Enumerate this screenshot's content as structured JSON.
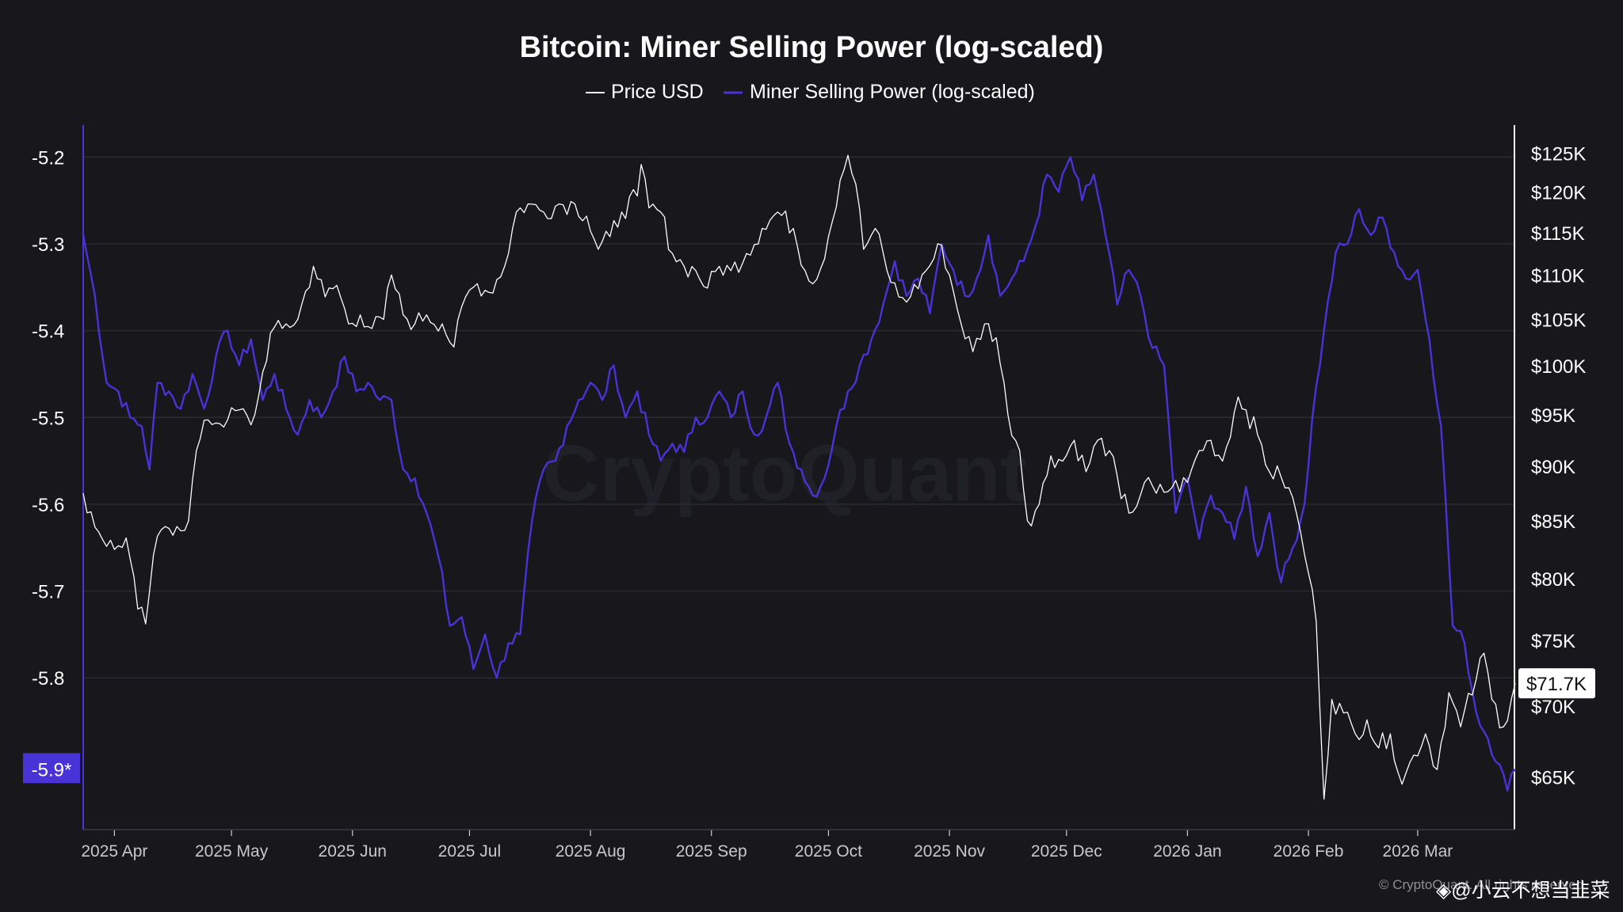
{
  "chart_data": {
    "type": "line",
    "title": "Bitcoin: Miner Selling Power (log-scaled)",
    "legend_position": "top-center",
    "grid": true,
    "x_ticks": [
      "2025 Apr",
      "2025 May",
      "2025 Jun",
      "2025 Jul",
      "2025 Aug",
      "2025 Sep",
      "2025 Oct",
      "2025 Nov",
      "2025 Dec",
      "2026 Jan",
      "2026 Feb",
      "2026 Mar"
    ],
    "x_range": [
      "2025-03-24",
      "2026-03-26"
    ],
    "y_left": {
      "ticks": [
        "-5.2",
        "-5.3",
        "-5.4",
        "-5.5",
        "-5.6",
        "-5.7",
        "-5.8"
      ],
      "range": [
        -5.975,
        -5.165
      ],
      "current_label": "-5.9*",
      "current_color": "#4733d6"
    },
    "y_right": {
      "scale": "log",
      "ticks": [
        "$125K",
        "$120K",
        "$115K",
        "$110K",
        "$105K",
        "$100K",
        "$95K",
        "$90K",
        "$85K",
        "$80K",
        "$75K",
        "$70K",
        "$65K"
      ],
      "tick_values": [
        125000,
        120000,
        115000,
        110000,
        105000,
        100000,
        95000,
        90000,
        85000,
        80000,
        75000,
        70000,
        65000
      ],
      "range": [
        61500,
        128500
      ],
      "current_label": "$71.7K"
    },
    "series": [
      {
        "name": "Price USD",
        "axis": "right",
        "color": "#ffffff",
        "points": [
          [
            "2025-03-24",
            87500
          ],
          [
            "2025-03-28",
            84000
          ],
          [
            "2025-04-01",
            82500
          ],
          [
            "2025-04-04",
            83500
          ],
          [
            "2025-04-07",
            77500
          ],
          [
            "2025-04-09",
            76300
          ],
          [
            "2025-04-11",
            82000
          ],
          [
            "2025-04-14",
            84500
          ],
          [
            "2025-04-17",
            84500
          ],
          [
            "2025-04-20",
            85000
          ],
          [
            "2025-04-22",
            91500
          ],
          [
            "2025-04-25",
            94500
          ],
          [
            "2025-04-30",
            94500
          ],
          [
            "2025-05-03",
            95500
          ],
          [
            "2025-05-06",
            94000
          ],
          [
            "2025-05-08",
            97000
          ],
          [
            "2025-05-11",
            103500
          ],
          [
            "2025-05-14",
            104000
          ],
          [
            "2025-05-18",
            105000
          ],
          [
            "2025-05-22",
            111000
          ],
          [
            "2025-05-25",
            107500
          ],
          [
            "2025-05-28",
            108800
          ],
          [
            "2025-05-31",
            104500
          ],
          [
            "2025-06-03",
            105500
          ],
          [
            "2025-06-06",
            104000
          ],
          [
            "2025-06-09",
            105000
          ],
          [
            "2025-06-11",
            110000
          ],
          [
            "2025-06-14",
            105500
          ],
          [
            "2025-06-17",
            104500
          ],
          [
            "2025-06-20",
            105500
          ],
          [
            "2025-06-24",
            104500
          ],
          [
            "2025-06-27",
            102000
          ],
          [
            "2025-06-30",
            107500
          ],
          [
            "2025-07-03",
            109000
          ],
          [
            "2025-07-06",
            108000
          ],
          [
            "2025-07-10",
            111000
          ],
          [
            "2025-07-13",
            117500
          ],
          [
            "2025-07-16",
            118500
          ],
          [
            "2025-07-20",
            117500
          ],
          [
            "2025-07-24",
            118500
          ],
          [
            "2025-07-28",
            118500
          ],
          [
            "2025-07-31",
            117000
          ],
          [
            "2025-08-03",
            113000
          ],
          [
            "2025-08-06",
            114500
          ],
          [
            "2025-08-09",
            117500
          ],
          [
            "2025-08-13",
            119500
          ],
          [
            "2025-08-14",
            123500
          ],
          [
            "2025-08-16",
            118000
          ],
          [
            "2025-08-19",
            117500
          ],
          [
            "2025-08-22",
            112500
          ],
          [
            "2025-08-25",
            111000
          ],
          [
            "2025-08-28",
            110500
          ],
          [
            "2025-08-31",
            108500
          ],
          [
            "2025-09-03",
            111000
          ],
          [
            "2025-09-06",
            110500
          ],
          [
            "2025-09-10",
            112500
          ],
          [
            "2025-09-14",
            115500
          ],
          [
            "2025-09-18",
            117500
          ],
          [
            "2025-09-22",
            115500
          ],
          [
            "2025-09-25",
            110500
          ],
          [
            "2025-09-28",
            109500
          ],
          [
            "2025-10-01",
            114500
          ],
          [
            "2025-10-04",
            121500
          ],
          [
            "2025-10-06",
            124700
          ],
          [
            "2025-10-08",
            121000
          ],
          [
            "2025-10-10",
            113000
          ],
          [
            "2025-10-13",
            115500
          ],
          [
            "2025-10-16",
            110500
          ],
          [
            "2025-10-19",
            107500
          ],
          [
            "2025-10-22",
            107500
          ],
          [
            "2025-10-26",
            110500
          ],
          [
            "2025-10-30",
            113500
          ],
          [
            "2025-11-01",
            110000
          ],
          [
            "2025-11-04",
            104500
          ],
          [
            "2025-11-07",
            101500
          ],
          [
            "2025-11-10",
            104500
          ],
          [
            "2025-11-13",
            103000
          ],
          [
            "2025-11-16",
            95000
          ],
          [
            "2025-11-19",
            91500
          ],
          [
            "2025-11-21",
            85000
          ],
          [
            "2025-11-24",
            86500
          ],
          [
            "2025-11-27",
            91000
          ],
          [
            "2025-11-30",
            90500
          ],
          [
            "2025-12-03",
            92500
          ],
          [
            "2025-12-06",
            89500
          ],
          [
            "2025-12-09",
            92500
          ],
          [
            "2025-12-12",
            91500
          ],
          [
            "2025-12-15",
            87000
          ],
          [
            "2025-12-18",
            85800
          ],
          [
            "2025-12-21",
            88500
          ],
          [
            "2025-12-24",
            87500
          ],
          [
            "2025-12-28",
            88000
          ],
          [
            "2026-01-01",
            88500
          ],
          [
            "2026-01-04",
            91500
          ],
          [
            "2026-01-07",
            92500
          ],
          [
            "2026-01-10",
            90500
          ],
          [
            "2026-01-14",
            96800
          ],
          [
            "2026-01-16",
            95500
          ],
          [
            "2026-01-19",
            93000
          ],
          [
            "2026-01-22",
            89500
          ],
          [
            "2026-01-25",
            89000
          ],
          [
            "2026-01-27",
            88000
          ],
          [
            "2026-01-30",
            84000
          ],
          [
            "2026-02-01",
            80500
          ],
          [
            "2026-02-03",
            76500
          ],
          [
            "2026-02-05",
            63500
          ],
          [
            "2026-02-07",
            70500
          ],
          [
            "2026-02-10",
            69500
          ],
          [
            "2026-02-13",
            68000
          ],
          [
            "2026-02-16",
            69000
          ],
          [
            "2026-02-19",
            67000
          ],
          [
            "2026-02-22",
            68000
          ],
          [
            "2026-02-25",
            64500
          ],
          [
            "2026-02-28",
            66500
          ],
          [
            "2026-03-03",
            68000
          ],
          [
            "2026-03-06",
            65500
          ],
          [
            "2026-03-09",
            71000
          ],
          [
            "2026-03-12",
            68500
          ],
          [
            "2026-03-16",
            72000
          ],
          [
            "2026-03-18",
            74000
          ],
          [
            "2026-03-20",
            70500
          ],
          [
            "2026-03-23",
            68500
          ],
          [
            "2026-03-25",
            70500
          ],
          [
            "2026-03-26",
            71700
          ]
        ]
      },
      {
        "name": "Miner Selling Power (log-scaled)",
        "axis": "left",
        "color": "#4733d6",
        "points": [
          [
            "2025-03-24",
            -5.29
          ],
          [
            "2025-03-27",
            -5.36
          ],
          [
            "2025-03-30",
            -5.46
          ],
          [
            "2025-04-02",
            -5.47
          ],
          [
            "2025-04-05",
            -5.5
          ],
          [
            "2025-04-08",
            -5.51
          ],
          [
            "2025-04-10",
            -5.56
          ],
          [
            "2025-04-12",
            -5.46
          ],
          [
            "2025-04-15",
            -5.47
          ],
          [
            "2025-04-18",
            -5.49
          ],
          [
            "2025-04-21",
            -5.45
          ],
          [
            "2025-04-24",
            -5.49
          ],
          [
            "2025-04-27",
            -5.43
          ],
          [
            "2025-04-30",
            -5.4
          ],
          [
            "2025-05-03",
            -5.44
          ],
          [
            "2025-05-06",
            -5.41
          ],
          [
            "2025-05-09",
            -5.48
          ],
          [
            "2025-05-12",
            -5.45
          ],
          [
            "2025-05-15",
            -5.49
          ],
          [
            "2025-05-18",
            -5.52
          ],
          [
            "2025-05-21",
            -5.48
          ],
          [
            "2025-05-24",
            -5.5
          ],
          [
            "2025-05-27",
            -5.47
          ],
          [
            "2025-05-30",
            -5.43
          ],
          [
            "2025-06-02",
            -5.47
          ],
          [
            "2025-06-05",
            -5.46
          ],
          [
            "2025-06-08",
            -5.48
          ],
          [
            "2025-06-11",
            -5.48
          ],
          [
            "2025-06-14",
            -5.56
          ],
          [
            "2025-06-17",
            -5.57
          ],
          [
            "2025-06-20",
            -5.61
          ],
          [
            "2025-06-23",
            -5.66
          ],
          [
            "2025-06-26",
            -5.74
          ],
          [
            "2025-06-29",
            -5.73
          ],
          [
            "2025-07-02",
            -5.79
          ],
          [
            "2025-07-05",
            -5.75
          ],
          [
            "2025-07-08",
            -5.8
          ],
          [
            "2025-07-11",
            -5.76
          ],
          [
            "2025-07-14",
            -5.75
          ],
          [
            "2025-07-17",
            -5.62
          ],
          [
            "2025-07-20",
            -5.56
          ],
          [
            "2025-07-23",
            -5.55
          ],
          [
            "2025-07-26",
            -5.51
          ],
          [
            "2025-07-29",
            -5.48
          ],
          [
            "2025-08-01",
            -5.46
          ],
          [
            "2025-08-04",
            -5.48
          ],
          [
            "2025-08-07",
            -5.44
          ],
          [
            "2025-08-10",
            -5.5
          ],
          [
            "2025-08-13",
            -5.47
          ],
          [
            "2025-08-16",
            -5.52
          ],
          [
            "2025-08-19",
            -5.55
          ],
          [
            "2025-08-22",
            -5.53
          ],
          [
            "2025-08-25",
            -5.54
          ],
          [
            "2025-08-28",
            -5.5
          ],
          [
            "2025-08-31",
            -5.5
          ],
          [
            "2025-09-03",
            -5.47
          ],
          [
            "2025-09-06",
            -5.5
          ],
          [
            "2025-09-09",
            -5.47
          ],
          [
            "2025-09-12",
            -5.52
          ],
          [
            "2025-09-15",
            -5.5
          ],
          [
            "2025-09-18",
            -5.46
          ],
          [
            "2025-09-21",
            -5.53
          ],
          [
            "2025-09-24",
            -5.56
          ],
          [
            "2025-09-27",
            -5.59
          ],
          [
            "2025-09-30",
            -5.57
          ],
          [
            "2025-10-03",
            -5.51
          ],
          [
            "2025-10-06",
            -5.47
          ],
          [
            "2025-10-09",
            -5.44
          ],
          [
            "2025-10-12",
            -5.41
          ],
          [
            "2025-10-15",
            -5.37
          ],
          [
            "2025-10-18",
            -5.32
          ],
          [
            "2025-10-21",
            -5.36
          ],
          [
            "2025-10-24",
            -5.34
          ],
          [
            "2025-10-27",
            -5.38
          ],
          [
            "2025-10-30",
            -5.3
          ],
          [
            "2025-11-02",
            -5.33
          ],
          [
            "2025-11-05",
            -5.36
          ],
          [
            "2025-11-08",
            -5.34
          ],
          [
            "2025-11-11",
            -5.29
          ],
          [
            "2025-11-14",
            -5.36
          ],
          [
            "2025-11-17",
            -5.34
          ],
          [
            "2025-11-20",
            -5.32
          ],
          [
            "2025-11-23",
            -5.28
          ],
          [
            "2025-11-26",
            -5.22
          ],
          [
            "2025-11-29",
            -5.24
          ],
          [
            "2025-12-02",
            -5.2
          ],
          [
            "2025-12-05",
            -5.25
          ],
          [
            "2025-12-08",
            -5.22
          ],
          [
            "2025-12-11",
            -5.29
          ],
          [
            "2025-12-14",
            -5.37
          ],
          [
            "2025-12-17",
            -5.33
          ],
          [
            "2025-12-20",
            -5.36
          ],
          [
            "2025-12-23",
            -5.42
          ],
          [
            "2025-12-26",
            -5.44
          ],
          [
            "2025-12-29",
            -5.61
          ],
          [
            "2026-01-01",
            -5.57
          ],
          [
            "2026-01-04",
            -5.64
          ],
          [
            "2026-01-07",
            -5.59
          ],
          [
            "2026-01-10",
            -5.61
          ],
          [
            "2026-01-13",
            -5.64
          ],
          [
            "2026-01-16",
            -5.58
          ],
          [
            "2026-01-19",
            -5.66
          ],
          [
            "2026-01-22",
            -5.61
          ],
          [
            "2026-01-25",
            -5.69
          ],
          [
            "2026-01-28",
            -5.65
          ],
          [
            "2026-01-31",
            -5.6
          ],
          [
            "2026-02-02",
            -5.5
          ],
          [
            "2026-02-05",
            -5.4
          ],
          [
            "2026-02-08",
            -5.31
          ],
          [
            "2026-02-11",
            -5.3
          ],
          [
            "2026-02-14",
            -5.26
          ],
          [
            "2026-02-17",
            -5.29
          ],
          [
            "2026-02-20",
            -5.27
          ],
          [
            "2026-02-23",
            -5.31
          ],
          [
            "2026-02-26",
            -5.34
          ],
          [
            "2026-03-01",
            -5.33
          ],
          [
            "2026-03-04",
            -5.41
          ],
          [
            "2026-03-07",
            -5.51
          ],
          [
            "2026-03-10",
            -5.74
          ],
          [
            "2026-03-13",
            -5.76
          ],
          [
            "2026-03-16",
            -5.84
          ],
          [
            "2026-03-19",
            -5.87
          ],
          [
            "2026-03-22",
            -5.9
          ],
          [
            "2026-03-24",
            -5.93
          ],
          [
            "2026-03-26",
            -5.905
          ]
        ]
      }
    ]
  },
  "watermark": "CryptoQuant",
  "credit": "© CryptoQuant. All rights reserved",
  "overlay_text": "◈@小云不想当韭菜"
}
